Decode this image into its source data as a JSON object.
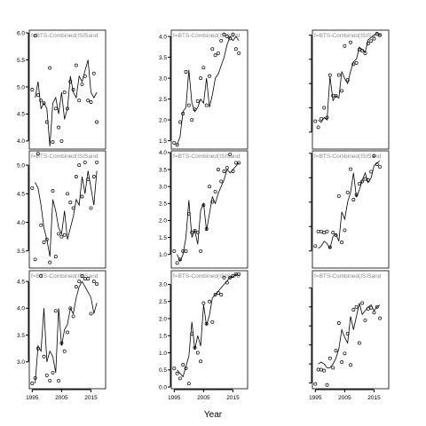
{
  "chart_data": {
    "type": "line",
    "xlabel": "Year",
    "x_ticks": [
      1995,
      2005,
      2015
    ],
    "xlim": [
      1994,
      2020
    ],
    "panels": [
      {
        "strip": "f=BTS-Combined(ISISand",
        "ylim": [
          3.85,
          6.05
        ],
        "yticks": [
          4.0,
          4.5,
          5.0,
          5.5,
          6.0
        ],
        "y_labels": [
          "4.0",
          "4.5",
          "5.0",
          "5.5",
          "6.0"
        ],
        "line": [
          4.8,
          5.1,
          4.6,
          4.7,
          4.6,
          3.9,
          4.7,
          4.8,
          4.5,
          4.9,
          4.4,
          4.6,
          5.2,
          4.9,
          4.8,
          5.2,
          5.1,
          5.3,
          5.5,
          4.9,
          4.8,
          4.9
        ],
        "points": [
          4.95,
          5.95,
          4.85,
          4.75,
          4.7,
          4.35,
          5.35,
          3.98,
          4.6,
          4.25,
          4.0,
          4.9,
          4.6,
          5.1,
          4.95,
          5.4,
          4.75,
          5.05,
          5.2,
          4.75,
          4.72,
          5.25,
          4.35
        ]
      },
      {
        "strip": "f=BTS-Combined(ISISand",
        "ylim": [
          1.3,
          4.15
        ],
        "yticks": [
          1.5,
          2.0,
          2.5,
          3.0,
          3.5,
          4.0
        ],
        "y_labels": [
          "1.5",
          "2.0",
          "2.5",
          "3.0",
          "3.5",
          "4.0"
        ],
        "line": [
          1.4,
          1.6,
          2.2,
          2.3,
          3.2,
          2.4,
          2.2,
          2.3,
          2.5,
          2.4,
          3.0,
          2.3,
          2.6,
          3.0,
          3.1,
          3.3,
          3.5,
          3.8,
          4.0,
          3.9,
          4.0,
          3.9
        ],
        "points": [
          1.45,
          1.4,
          1.95,
          2.15,
          3.15,
          2.35,
          2.0,
          2.25,
          2.45,
          3.0,
          3.25,
          2.35,
          3.05,
          3.7,
          3.55,
          3.6,
          3.9,
          4.05,
          4.0,
          3.95,
          4.05,
          3.7,
          3.6
        ]
      },
      {
        "strip": "f=BTS-Combined(ISISand",
        "ylim": [
          -1.7,
          3.2
        ],
        "yticks": [
          -1,
          0,
          1,
          2,
          3
        ],
        "y_labels": [
          "",
          "",
          "",
          "",
          ""
        ],
        "line": [
          -0.5,
          -0.6,
          -0.4,
          -0.5,
          1.3,
          0.3,
          0.5,
          0.4,
          1.5,
          1.2,
          1.0,
          1.5,
          1.9,
          2.0,
          2.5,
          2.4,
          2.3,
          2.8,
          2.9,
          3.0,
          3.1,
          3.0
        ],
        "points": [
          -0.55,
          -0.8,
          -0.45,
          0.0,
          -0.4,
          1.35,
          0.5,
          0.5,
          1.35,
          0.7,
          2.55,
          1.15,
          2.7,
          1.8,
          1.85,
          2.4,
          2.35,
          2.25,
          2.65,
          2.75,
          2.85,
          3.05,
          3.0
        ]
      },
      {
        "strip": "f=BTS-Combined(ISISand",
        "ylim": [
          3.2,
          5.25
        ],
        "yticks": [
          3.5,
          4.0,
          4.5,
          5.0
        ],
        "y_labels": [
          "3.5",
          "4.0",
          "4.5",
          "5.0"
        ],
        "line": [
          4.7,
          4.6,
          4.3,
          3.9,
          3.7,
          3.4,
          4.4,
          4.2,
          3.9,
          3.8,
          4.2,
          3.7,
          3.9,
          4.1,
          4.4,
          4.3,
          4.8,
          4.5,
          4.9,
          4.6,
          4.3,
          4.9
        ],
        "points": [
          4.6,
          3.35,
          5.2,
          3.95,
          3.65,
          3.7,
          3.3,
          4.55,
          3.4,
          3.8,
          3.75,
          3.78,
          4.5,
          4.35,
          4.25,
          4.8,
          5.0,
          4.45,
          5.05,
          4.75,
          4.25,
          4.8,
          5.05
        ]
      },
      {
        "strip": "f=BTS-Combined(ISISand",
        "ylim": [
          0.6,
          4.05
        ],
        "yticks": [
          1.0,
          1.5,
          2.0,
          2.5,
          3.0,
          3.5,
          4.0
        ],
        "y_labels": [
          "1.0",
          "1.5",
          "2.0",
          "2.5",
          "3.0",
          "3.5",
          "4.0"
        ],
        "line": [
          1.0,
          0.8,
          1.0,
          1.5,
          2.6,
          1.5,
          1.7,
          1.3,
          2.3,
          2.5,
          1.7,
          2.2,
          2.7,
          2.5,
          2.8,
          3.0,
          3.2,
          3.5,
          3.4,
          3.5,
          3.6,
          3.7
        ],
        "points": [
          1.1,
          0.75,
          0.85,
          1.1,
          1.1,
          2.2,
          1.65,
          1.7,
          1.65,
          1.1,
          2.45,
          1.75,
          3.0,
          2.55,
          2.85,
          3.5,
          3.15,
          3.45,
          3.55,
          3.95,
          3.45,
          3.7,
          3.7
        ]
      },
      {
        "strip": "f=BTS-Combined(ISISand",
        "ylim": [
          -1.7,
          3.1
        ],
        "yticks": [
          -1,
          0,
          1,
          2,
          3
        ],
        "y_labels": [
          "",
          "",
          "",
          "",
          ""
        ],
        "line": [
          -0.9,
          -0.8,
          -0.6,
          -0.7,
          -0.9,
          -0.4,
          -0.3,
          -0.6,
          0.6,
          0.3,
          1.0,
          1.4,
          2.2,
          1.2,
          1.5,
          1.9,
          2.2,
          1.8,
          2.0,
          2.5,
          2.6,
          2.7
        ],
        "points": [
          -0.8,
          -0.2,
          -0.2,
          -0.25,
          -0.2,
          -0.85,
          -0.25,
          -0.35,
          1.25,
          -0.65,
          -0.15,
          1.4,
          2.35,
          1.1,
          1.3,
          1.75,
          1.85,
          1.95,
          1.9,
          2.25,
          2.9,
          2.55,
          2.45
        ]
      },
      {
        "strip": "f=BTS-Combined(ISISand",
        "ylim": [
          2.5,
          4.7
        ],
        "yticks": [
          3.0,
          3.5,
          4.0,
          4.5
        ],
        "y_labels": [
          "3.0",
          "3.5",
          "4.0",
          "4.5"
        ],
        "line": [
          2.6,
          3.3,
          3.2,
          4.0,
          3.0,
          3.2,
          3.1,
          2.8,
          4.0,
          3.3,
          3.6,
          3.7,
          4.0,
          3.9,
          4.2,
          4.4,
          4.5,
          4.4,
          4.3,
          4.2,
          3.9,
          4.1
        ],
        "points": [
          2.6,
          2.7,
          3.25,
          4.6,
          3.1,
          2.75,
          2.65,
          2.8,
          3.95,
          2.65,
          3.35,
          3.2,
          3.55,
          4.0,
          3.85,
          4.4,
          4.5,
          4.6,
          4.55,
          4.55,
          3.9,
          4.5,
          4.45
        ]
      },
      {
        "strip": "f=BTS-Combined(ISISand",
        "ylim": [
          -0.05,
          3.4
        ],
        "yticks": [
          0.0,
          0.5,
          1.0,
          1.5,
          2.0,
          2.5,
          3.0
        ],
        "y_labels": [
          "0.0",
          "0.5",
          "1.0",
          "1.5",
          "2.0",
          "2.5",
          "3.0"
        ],
        "line": [
          0.5,
          0.4,
          0.3,
          0.6,
          0.9,
          1.9,
          1.1,
          1.5,
          1.2,
          2.4,
          1.8,
          2.1,
          2.6,
          2.7,
          2.8,
          2.9,
          3.0,
          3.1,
          3.2,
          3.2,
          3.3,
          3.25
        ],
        "points": [
          0.55,
          0.4,
          0.25,
          0.65,
          0.55,
          0.1,
          1.55,
          1.15,
          1.0,
          0.75,
          2.45,
          1.85,
          2.5,
          1.9,
          2.7,
          2.75,
          2.7,
          3.2,
          3.05,
          3.2,
          3.25,
          3.3,
          3.3
        ]
      },
      {
        "strip": "f=BTS-Combined(ISISand",
        "ylim": [
          -2.3,
          3.9
        ],
        "yticks": [
          -2,
          -1,
          0,
          1,
          2,
          3
        ],
        "y_labels": [
          "",
          "",
          "",
          "",
          "",
          ""
        ],
        "line": [
          -1.0,
          -0.9,
          -1.0,
          -1.2,
          -1.2,
          -1.0,
          -0.7,
          -0.2,
          0.8,
          0.4,
          0.1,
          1.5,
          0.8,
          1.5,
          2.2,
          1.6,
          1.8,
          2.0,
          2.1,
          1.8,
          2.0,
          2.1
        ],
        "points": [
          -2.05,
          -1.3,
          -1.3,
          -1.35,
          -2.1,
          -0.7,
          -1.2,
          -0.3,
          1.15,
          -0.9,
          -0.45,
          0.6,
          -1.05,
          1.85,
          2.0,
          0.1,
          2.2,
          1.3,
          1.9,
          1.95,
          1.7,
          2.0,
          1.4
        ]
      }
    ]
  },
  "axes": {
    "x_tick_labels": [
      "1995",
      "2005",
      "2015"
    ]
  }
}
